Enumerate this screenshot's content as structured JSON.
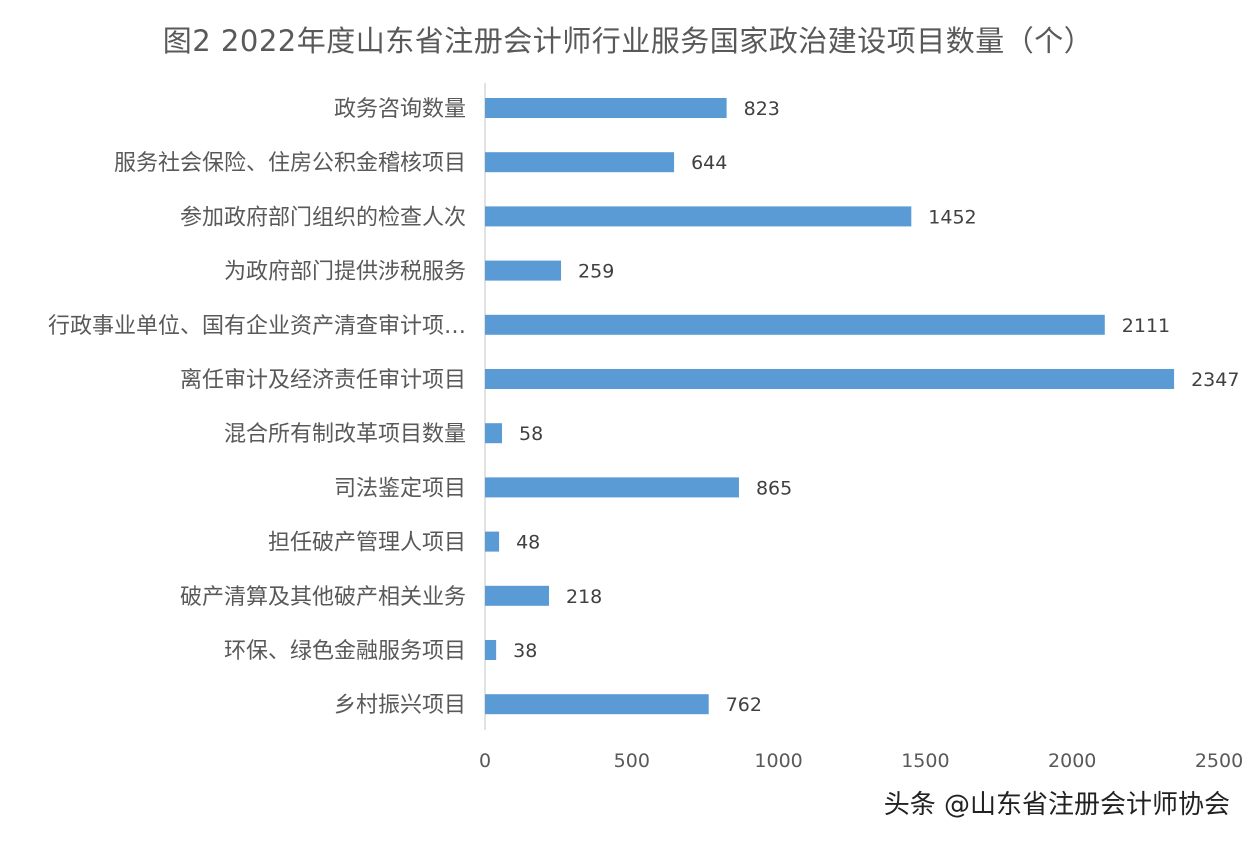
{
  "watermark": "头条 @山东省注册会计师协会",
  "colors": {
    "bar": "#5b9bd5",
    "axis": "#d9d9d9",
    "text": "#595959",
    "label": "#404040"
  },
  "chart_data": {
    "type": "bar",
    "orientation": "horizontal",
    "title": "图2   2022年度山东省注册会计师行业服务国家政治建设项目数量（个）",
    "categories": [
      "政务咨询数量",
      "服务社会保险、住房公积金稽核项目",
      "参加政府部门组织的检查人次",
      "为政府部门提供涉税服务",
      "行政事业单位、国有企业资产清查审计项…",
      "离任审计及经济责任审计项目",
      "混合所有制改革项目数量",
      "司法鉴定项目",
      "担任破产管理人项目",
      "破产清算及其他破产相关业务",
      "环保、绿色金融服务项目",
      "乡村振兴项目"
    ],
    "values": [
      823,
      644,
      1452,
      259,
      2111,
      2347,
      58,
      865,
      48,
      218,
      38,
      762
    ],
    "xlim": [
      0,
      2500
    ],
    "xticks": [
      0,
      500,
      1000,
      1500,
      2000,
      2500
    ],
    "xlabel": "",
    "ylabel": "",
    "grid": false,
    "data_labels": true
  }
}
